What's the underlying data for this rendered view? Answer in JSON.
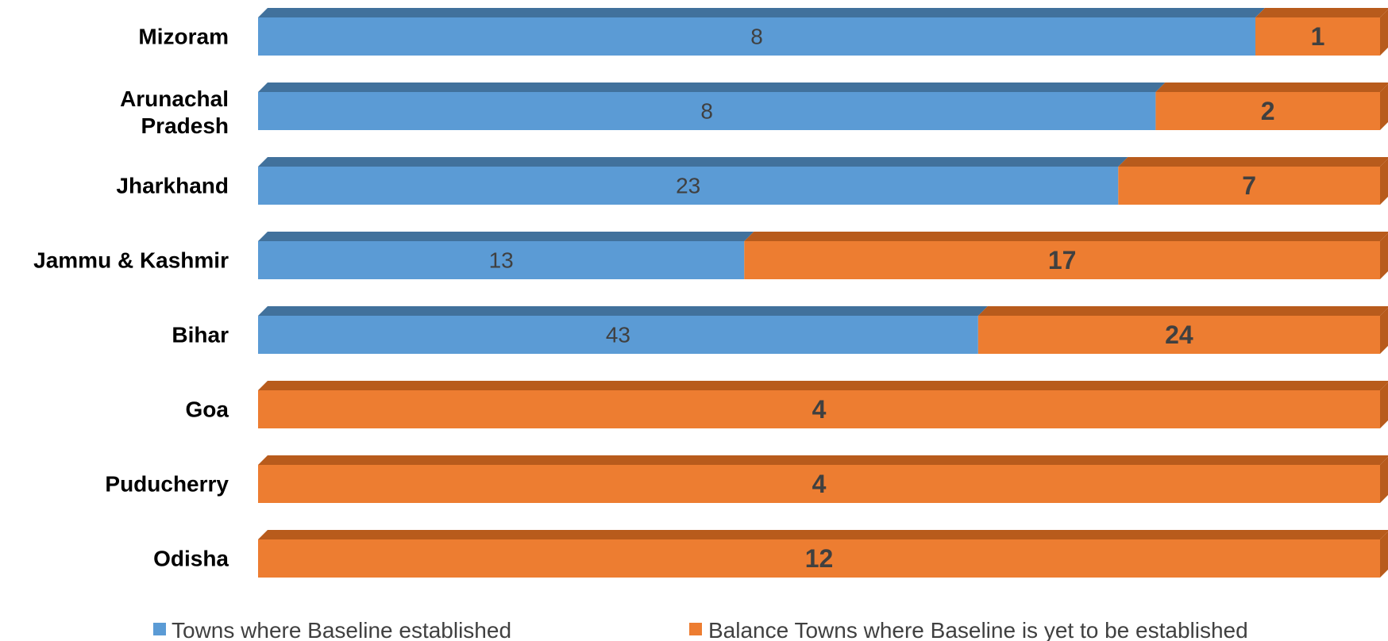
{
  "chart_data": {
    "type": "bar",
    "orientation": "horizontal",
    "stacked": "percent",
    "categories": [
      "Mizoram",
      "Arunachal Pradesh",
      "Jharkhand",
      "Jammu & Kashmir",
      "Bihar",
      "Goa",
      "Puducherry",
      "Odisha"
    ],
    "series": [
      {
        "name": "Towns where Baseline established",
        "values": [
          8,
          8,
          23,
          13,
          43,
          0,
          0,
          0
        ],
        "labels": [
          "8",
          "8",
          "23",
          "13",
          "43",
          "",
          "",
          ""
        ]
      },
      {
        "name": "Balance Towns where Baseline is yet to be established",
        "values": [
          1,
          2,
          7,
          17,
          24,
          4,
          4,
          12
        ],
        "labels": [
          "1",
          "2",
          "7",
          "17",
          "24",
          "4",
          "4",
          "12"
        ]
      }
    ],
    "colors": {
      "series_a": "#5b9bd5",
      "series_a_top": "#41719c",
      "series_b": "#ed7d31",
      "series_b_top": "#b85b1c"
    },
    "legend_position": "bottom",
    "grid": false,
    "title": "",
    "xlabel": "",
    "ylabel": ""
  }
}
